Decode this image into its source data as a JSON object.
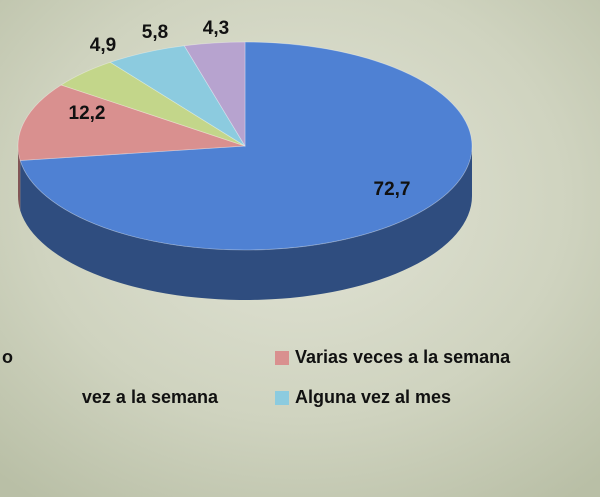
{
  "chart_data": {
    "type": "pie",
    "categories": [
      "o",
      "Varias veces a la semana",
      "vez a la semana",
      "Alguna vez al mes",
      null
    ],
    "values": [
      72.7,
      12.2,
      4.9,
      5.8,
      4.3
    ],
    "value_labels": [
      "72,7",
      "12,2",
      "4,9",
      "5,8",
      "4,3"
    ],
    "colors": [
      "#4f81d3",
      "#d9908f",
      "#c3d68a",
      "#8ccbdf",
      "#b7a3cf"
    ]
  }
}
